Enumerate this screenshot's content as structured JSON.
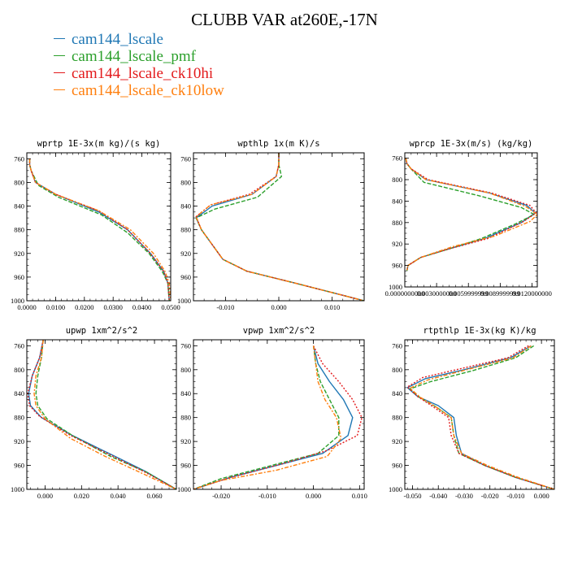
{
  "title": "CLUBB VAR at260E,-17N",
  "legend": [
    {
      "name": "cam144_lscale",
      "color": "#1f77b4"
    },
    {
      "name": "cam144_lscale_pmf",
      "color": "#2ca02c"
    },
    {
      "name": "cam144_lscale_ck10hi",
      "color": "#e31a1c"
    },
    {
      "name": "cam144_lscale_ck10low",
      "color": "#ff7f0e"
    }
  ],
  "chart_data": [
    {
      "type": "line",
      "title": "wprtp  1E-3x(m kg)/(s kg)",
      "xlim": [
        0,
        0.05
      ],
      "ylim": [
        1000,
        750
      ],
      "yticks": [
        760,
        800,
        840,
        880,
        920,
        960,
        1000
      ],
      "xticks": [
        0,
        0.01,
        0.02,
        0.03,
        0.04,
        0.05
      ],
      "xtick_labels": [
        "0.0000",
        "0.0100",
        "0.0200",
        "0.0300",
        "0.0400",
        "0.0500"
      ],
      "series": [
        {
          "name": "cam144_lscale",
          "x": [
            0.001,
            0.001,
            0.0015,
            0.003,
            0.01,
            0.025,
            0.035,
            0.043,
            0.0475,
            0.049,
            0.0495
          ],
          "y": [
            760,
            770,
            780,
            800,
            820,
            850,
            880,
            920,
            950,
            970,
            1000
          ]
        },
        {
          "name": "cam144_lscale_pmf",
          "x": [
            0.001,
            0.001,
            0.0015,
            0.004,
            0.011,
            0.026,
            0.035,
            0.0425,
            0.047,
            0.049,
            0.0495
          ],
          "y": [
            760,
            770,
            780,
            805,
            825,
            855,
            885,
            920,
            950,
            970,
            1000
          ]
        },
        {
          "name": "cam144_lscale_ck10hi",
          "x": [
            0.001,
            0.001,
            0.0015,
            0.003,
            0.01,
            0.025,
            0.035,
            0.043,
            0.0475,
            0.049,
            0.0495
          ],
          "y": [
            760,
            770,
            780,
            800,
            820,
            848,
            880,
            920,
            950,
            970,
            1000
          ]
        },
        {
          "name": "cam144_lscale_ck10low",
          "x": [
            0.001,
            0.001,
            0.0015,
            0.003,
            0.01,
            0.025,
            0.036,
            0.044,
            0.048,
            0.0495,
            0.05
          ],
          "y": [
            760,
            770,
            780,
            800,
            820,
            848,
            880,
            920,
            950,
            970,
            1000
          ]
        }
      ]
    },
    {
      "type": "line",
      "title": "wpthlp  1x(m K)/s",
      "xlim": [
        -0.016,
        0.016
      ],
      "ylim": [
        1000,
        750
      ],
      "yticks": [
        760,
        800,
        840,
        880,
        920,
        960,
        1000
      ],
      "xticks": [
        -0.01,
        0,
        0.01
      ],
      "xtick_labels": [
        "-0.010",
        "0.000",
        "0.010"
      ],
      "series": [
        {
          "name": "cam144_lscale",
          "x": [
            0,
            0,
            -0.0005,
            -0.005,
            -0.0125,
            -0.0155,
            -0.0145,
            -0.0105,
            -0.006,
            0.003,
            0.016
          ],
          "y": [
            750,
            770,
            790,
            820,
            840,
            860,
            880,
            930,
            950,
            970,
            1000
          ]
        },
        {
          "name": "cam144_lscale_pmf",
          "x": [
            0,
            0,
            0.0005,
            -0.004,
            -0.012,
            -0.0155,
            -0.0145,
            -0.0105,
            -0.006,
            0.003,
            0.016
          ],
          "y": [
            750,
            770,
            790,
            825,
            845,
            860,
            880,
            930,
            950,
            970,
            1000
          ]
        },
        {
          "name": "cam144_lscale_ck10hi",
          "x": [
            0,
            0,
            -0.0005,
            -0.0055,
            -0.0128,
            -0.0155,
            -0.0145,
            -0.0105,
            -0.006,
            0.003,
            0.016
          ],
          "y": [
            750,
            770,
            790,
            820,
            838,
            858,
            880,
            930,
            950,
            970,
            1000
          ]
        },
        {
          "name": "cam144_lscale_ck10low",
          "x": [
            0,
            0,
            -0.0005,
            -0.005,
            -0.0128,
            -0.0155,
            -0.0145,
            -0.0105,
            -0.006,
            0.003,
            0.016
          ],
          "y": [
            750,
            770,
            790,
            820,
            838,
            858,
            880,
            930,
            950,
            970,
            1000
          ]
        }
      ]
    },
    {
      "type": "line",
      "title": "wprcp  1E-3x(m/s) (kg/kg)",
      "xlim": [
        0,
        0.0125
      ],
      "ylim": [
        1000,
        750
      ],
      "yticks": [
        760,
        800,
        840,
        880,
        920,
        960,
        1000
      ],
      "xticks": [
        0,
        0.003,
        0.006,
        0.009,
        0.012
      ],
      "xtick_labels": [
        "0.0000000000",
        "0.0030000000",
        "0.0059999999",
        "0.0089999999",
        "0.0120000000"
      ],
      "series": [
        {
          "name": "cam144_lscale",
          "x": [
            0.0001,
            0.0002,
            0.0006,
            0.002,
            0.008,
            0.0115,
            0.0123,
            0.011,
            0.0075,
            0.004,
            0.0015,
            0.0003,
            0.0002
          ],
          "y": [
            760,
            770,
            780,
            800,
            825,
            848,
            862,
            880,
            910,
            930,
            945,
            960,
            970
          ]
        },
        {
          "name": "cam144_lscale_pmf",
          "x": [
            0.0001,
            0.0002,
            0.0006,
            0.0018,
            0.007,
            0.011,
            0.0122,
            0.0105,
            0.0072,
            0.004,
            0.0015,
            0.0003,
            0.0002
          ],
          "y": [
            760,
            770,
            780,
            805,
            830,
            852,
            865,
            882,
            910,
            930,
            945,
            960,
            970
          ]
        },
        {
          "name": "cam144_lscale_ck10hi",
          "x": [
            0.0001,
            0.0002,
            0.0006,
            0.0022,
            0.0082,
            0.0118,
            0.0124,
            0.0112,
            0.0078,
            0.004,
            0.0015,
            0.0003,
            0.0002
          ],
          "y": [
            760,
            770,
            780,
            800,
            825,
            848,
            862,
            878,
            910,
            930,
            945,
            960,
            970
          ]
        },
        {
          "name": "cam144_lscale_ck10low",
          "x": [
            0.0001,
            0.0002,
            0.0006,
            0.002,
            0.008,
            0.0114,
            0.0125,
            0.0118,
            0.0085,
            0.0045,
            0.0015,
            0.0003,
            0.0002
          ],
          "y": [
            760,
            770,
            780,
            800,
            825,
            850,
            865,
            878,
            905,
            925,
            945,
            960,
            970
          ]
        }
      ]
    },
    {
      "type": "line",
      "title": "upwp  1xm^2/s^2",
      "xlim": [
        -0.01,
        0.072
      ],
      "ylim": [
        1000,
        750
      ],
      "yticks": [
        760,
        800,
        840,
        880,
        920,
        960,
        1000
      ],
      "xticks": [
        0,
        0.02,
        0.04,
        0.06
      ],
      "xtick_labels": [
        "0.000",
        "0.020",
        "0.040",
        "0.060"
      ],
      "series": [
        {
          "name": "cam144_lscale",
          "x": [
            -0.001,
            -0.003,
            -0.007,
            -0.009,
            -0.008,
            -0.002,
            0.015,
            0.035,
            0.055,
            0.072
          ],
          "y": [
            750,
            780,
            810,
            840,
            860,
            880,
            910,
            940,
            970,
            1000
          ]
        },
        {
          "name": "cam144_lscale_pmf",
          "x": [
            -0.001,
            -0.002,
            -0.004,
            -0.005,
            -0.004,
            0.001,
            0.016,
            0.036,
            0.056,
            0.072
          ],
          "y": [
            750,
            780,
            810,
            840,
            860,
            882,
            912,
            945,
            972,
            1000
          ]
        },
        {
          "name": "cam144_lscale_ck10hi",
          "x": [
            -0.001,
            -0.003,
            -0.007,
            -0.0095,
            -0.0085,
            -0.003,
            0.014,
            0.034,
            0.054,
            0.072
          ],
          "y": [
            750,
            780,
            810,
            840,
            860,
            878,
            910,
            940,
            970,
            1000
          ]
        },
        {
          "name": "cam144_lscale_ck10low",
          "x": [
            -0.001,
            -0.002,
            -0.005,
            -0.006,
            -0.005,
            0,
            0.014,
            0.033,
            0.053,
            0.072
          ],
          "y": [
            750,
            780,
            810,
            840,
            860,
            882,
            915,
            945,
            973,
            1000
          ]
        }
      ]
    },
    {
      "type": "line",
      "title": "vpwp  1xm^2/s^2",
      "xlim": [
        -0.026,
        0.011
      ],
      "ylim": [
        1000,
        750
      ],
      "yticks": [
        760,
        800,
        840,
        880,
        920,
        960,
        1000
      ],
      "xticks": [
        -0.02,
        -0.01,
        0,
        0.01
      ],
      "xtick_labels": [
        "-0.020",
        "-0.010",
        "0.000",
        "0.010"
      ],
      "series": [
        {
          "name": "cam144_lscale",
          "x": [
            0,
            0.001,
            0.0035,
            0.0065,
            0.0085,
            0.0075,
            0.002,
            -0.008,
            -0.018,
            -0.026
          ],
          "y": [
            760,
            790,
            820,
            850,
            880,
            910,
            940,
            960,
            980,
            1000
          ]
        },
        {
          "name": "cam144_lscale_pmf",
          "x": [
            0,
            0.0005,
            0.0015,
            0.0035,
            0.0055,
            0.0055,
            0.001,
            -0.01,
            -0.02,
            -0.026
          ],
          "y": [
            760,
            790,
            820,
            850,
            880,
            910,
            940,
            962,
            982,
            1000
          ]
        },
        {
          "name": "cam144_lscale_ck10hi",
          "x": [
            0,
            0.002,
            0.0055,
            0.0085,
            0.0105,
            0.0095,
            0.003,
            -0.007,
            -0.018,
            -0.026
          ],
          "y": [
            760,
            790,
            820,
            850,
            880,
            910,
            935,
            958,
            980,
            1000
          ]
        },
        {
          "name": "cam144_lscale_ck10low",
          "x": [
            0,
            0.0005,
            0.001,
            0.0025,
            0.005,
            0.006,
            0.003,
            -0.008,
            -0.02,
            -0.026
          ],
          "y": [
            760,
            790,
            820,
            850,
            880,
            915,
            945,
            968,
            985,
            1000
          ]
        }
      ]
    },
    {
      "type": "line",
      "title": "rtpthlp  1E-3x(kg K)/kg",
      "xlim": [
        -0.053,
        0.005
      ],
      "ylim": [
        1000,
        750
      ],
      "yticks": [
        760,
        800,
        840,
        880,
        920,
        960,
        1000
      ],
      "xticks": [
        -0.05,
        -0.04,
        -0.03,
        -0.02,
        -0.01,
        0
      ],
      "xtick_labels": [
        "-0.050",
        "-0.040",
        "-0.030",
        "-0.020",
        "-0.010",
        "0.000"
      ],
      "series": [
        {
          "name": "cam144_lscale",
          "x": [
            -0.004,
            -0.012,
            -0.03,
            -0.045,
            -0.052,
            -0.048,
            -0.04,
            -0.034,
            -0.033,
            -0.031,
            -0.022,
            -0.01,
            0.005
          ],
          "y": [
            760,
            780,
            800,
            815,
            830,
            845,
            860,
            880,
            910,
            940,
            960,
            980,
            1000
          ]
        },
        {
          "name": "cam144_lscale_pmf",
          "x": [
            -0.003,
            -0.01,
            -0.027,
            -0.043,
            -0.051,
            -0.047,
            -0.041,
            -0.035,
            -0.034,
            -0.032,
            -0.022,
            -0.01,
            0.005
          ],
          "y": [
            760,
            780,
            802,
            820,
            832,
            847,
            862,
            880,
            910,
            940,
            960,
            980,
            1000
          ]
        },
        {
          "name": "cam144_lscale_ck10hi",
          "x": [
            -0.005,
            -0.013,
            -0.031,
            -0.046,
            -0.052,
            -0.048,
            -0.042,
            -0.036,
            -0.035,
            -0.032,
            -0.022,
            -0.01,
            0.005
          ],
          "y": [
            760,
            780,
            798,
            813,
            829,
            845,
            862,
            880,
            910,
            940,
            960,
            980,
            1000
          ]
        },
        {
          "name": "cam144_lscale_ck10low",
          "x": [
            -0.004,
            -0.011,
            -0.029,
            -0.044,
            -0.051,
            -0.047,
            -0.041,
            -0.035,
            -0.034,
            -0.031,
            -0.021,
            -0.009,
            0.005
          ],
          "y": [
            760,
            780,
            800,
            817,
            831,
            846,
            862,
            880,
            910,
            940,
            960,
            980,
            1000
          ]
        }
      ]
    }
  ]
}
